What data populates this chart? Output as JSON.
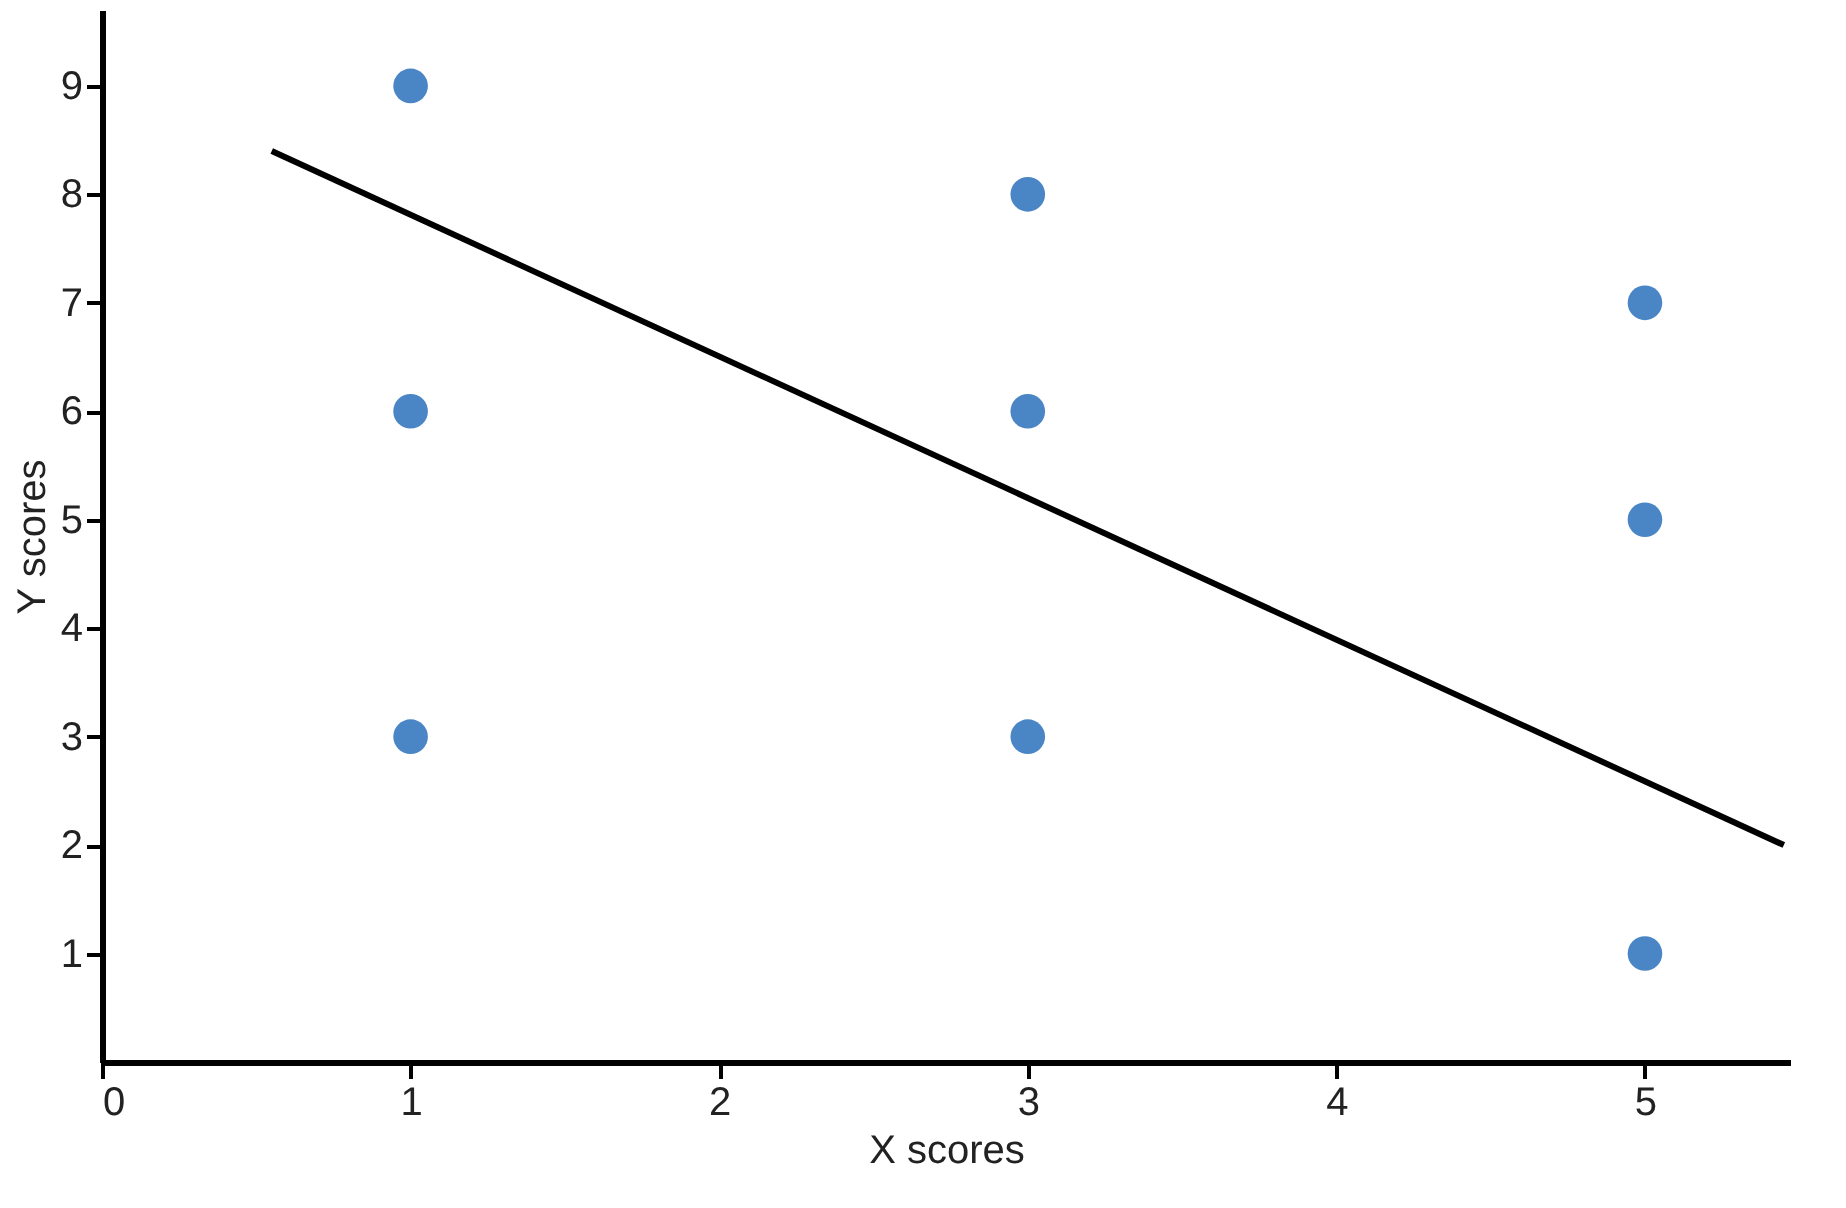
{
  "chart_data": {
    "type": "scatter",
    "xlabel": "X scores",
    "ylabel": "Y scores",
    "xlim": [
      0,
      5.47
    ],
    "ylim": [
      0,
      9.7
    ],
    "xticks": [
      0,
      1,
      2,
      3,
      4,
      5
    ],
    "yticks": [
      1,
      2,
      3,
      4,
      5,
      6,
      7,
      8,
      9
    ],
    "grid": false,
    "series": [
      {
        "marker": "circle",
        "color": "#4a86c5",
        "x": [
          1,
          1,
          1,
          3,
          3,
          3,
          5,
          5,
          5
        ],
        "values": [
          9,
          6,
          3,
          8,
          6,
          3,
          7,
          5,
          1
        ]
      },
      {
        "type": "line",
        "color": "#000000",
        "x": [
          0.55,
          5.45
        ],
        "values": [
          8.4,
          2.0
        ],
        "line_style": "solid"
      }
    ]
  }
}
